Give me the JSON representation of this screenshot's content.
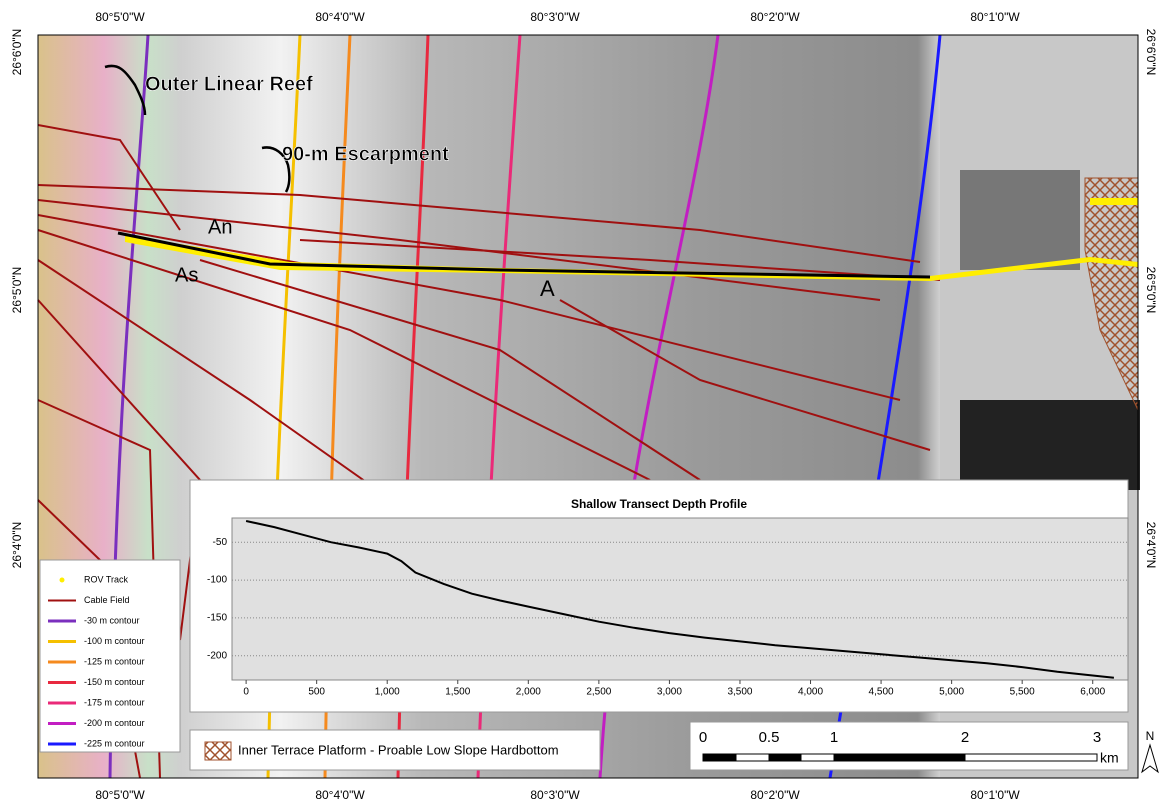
{
  "map": {
    "top_labels": [
      "80°5'0\"W",
      "80°4'0\"W",
      "80°3'0\"W",
      "80°2'0\"W",
      "80°1'0\"W"
    ],
    "bottom_labels": [
      "80°5'0\"W",
      "80°4'0\"W",
      "80°3'0\"W",
      "80°2'0\"W",
      "80°1'0\"W"
    ],
    "left_labels": [
      "26°6'0\"N",
      "26°5'0\"N",
      "26°4'0\"N"
    ],
    "right_labels": [
      "26°6'0\"N",
      "26°5'0\"N",
      "26°4'0\"N"
    ],
    "annotations": [
      "Outer Linear Reef",
      "90-m Escarpment",
      "An",
      "As",
      "A"
    ],
    "legend": [
      {
        "label": "ROV Track",
        "color": "#ffee00"
      },
      {
        "label": "Cable Field",
        "color": "#a01010"
      },
      {
        "label": "-30  m contour",
        "color": "#7b2fbe"
      },
      {
        "label": "-100 m contour",
        "color": "#f5c000"
      },
      {
        "label": "-125 m contour",
        "color": "#f58a1e"
      },
      {
        "label": "-150 m contour",
        "color": "#e8293f"
      },
      {
        "label": "-175 m contour",
        "color": "#ea2a78"
      },
      {
        "label": "-200 m contour",
        "color": "#c21ec2"
      },
      {
        "label": "-225 m contour",
        "color": "#1a1aff"
      }
    ],
    "platform_legend": "Inner Terrace Platform - Proable Low Slope Hardbottom",
    "scale_bar": [
      "0",
      "0.5",
      "1",
      "2",
      "3"
    ],
    "scale_unit": "km",
    "north": "N"
  },
  "chart_data": {
    "type": "line",
    "title": "Shallow Transect Depth Profile",
    "color": "#000000",
    "x": [
      0,
      200,
      400,
      600,
      800,
      1000,
      1100,
      1200,
      1400,
      1600,
      1800,
      2000,
      2250,
      2500,
      2750,
      3000,
      3250,
      3500,
      3750,
      4000,
      4250,
      4500,
      4750,
      5000,
      5250,
      5500,
      5750,
      6000,
      6150
    ],
    "values": [
      -22,
      -30,
      -40,
      -50,
      -57,
      -65,
      -75,
      -90,
      -105,
      -118,
      -127,
      -135,
      -145,
      -155,
      -163,
      -170,
      -176,
      -181,
      -186,
      -190,
      -194,
      -198,
      -202,
      -206,
      -210,
      -215,
      -221,
      -226,
      -229
    ],
    "xlim": [
      -100,
      6250
    ],
    "ylim": [
      -232,
      -18
    ],
    "xticks": [
      0,
      500,
      {
        "value": 1000,
        "label": "1,000"
      },
      {
        "value": 1500,
        "label": "1,500"
      },
      {
        "value": 2000,
        "label": "2,000"
      },
      {
        "value": 2500,
        "label": "2,500"
      },
      {
        "value": 3000,
        "label": "3,000"
      },
      {
        "value": 3500,
        "label": "3,500"
      },
      {
        "value": 4000,
        "label": "4,000"
      },
      {
        "value": 4500,
        "label": "4,500"
      },
      {
        "value": 5000,
        "label": "5,000"
      },
      {
        "value": 5500,
        "label": "5,500"
      },
      {
        "value": 6000,
        "label": "6,000"
      }
    ],
    "yticks": [
      -50,
      -100,
      -150,
      -200
    ],
    "grid": true
  }
}
